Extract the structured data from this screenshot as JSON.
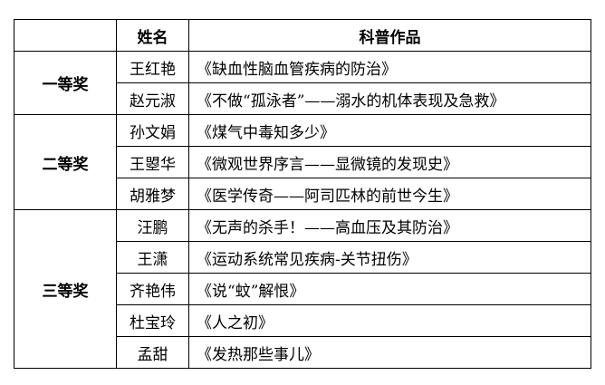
{
  "header": {
    "award": "",
    "name": "姓名",
    "work": "科普作品"
  },
  "groups": [
    {
      "award": "一等奖",
      "rows": [
        {
          "name": "王红艳",
          "work": "《缺血性脑血管疾病的防治》"
        },
        {
          "name": "赵元淑",
          "work": "《不做“孤泳者”——溺水的机体表现及急救》"
        }
      ]
    },
    {
      "award": "二等奖",
      "rows": [
        {
          "name": "孙文娟",
          "work": "《煤气中毒知多少》"
        },
        {
          "name": "王曌华",
          "work": "《微观世界序言——显微镜的发现史》"
        },
        {
          "name": "胡雅梦",
          "work": "《医学传奇——阿司匹林的前世今生》"
        }
      ]
    },
    {
      "award": "三等奖",
      "rows": [
        {
          "name": "汪鹏",
          "work": "《无声的杀手！——高血压及其防治》"
        },
        {
          "name": "王潇",
          "work": "《运动系统常见疾病-关节扭伤》"
        },
        {
          "name": "齐艳伟",
          "work": "《说“蚊”解恨》"
        },
        {
          "name": "杜宝玲",
          "work": "《人之初》"
        },
        {
          "name": "孟甜",
          "work": "《发热那些事儿》"
        }
      ]
    }
  ]
}
